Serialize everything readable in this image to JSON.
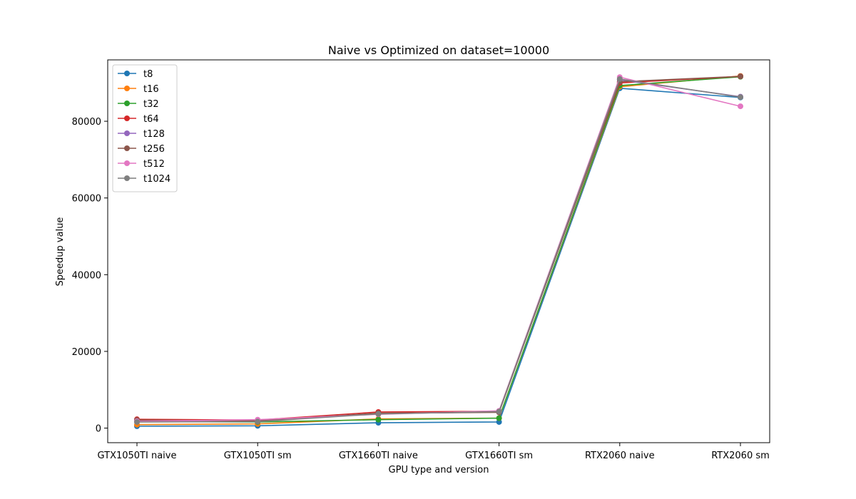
{
  "chart_data": {
    "type": "line",
    "title": "Naive vs Optimized on dataset=10000",
    "xlabel": "GPU type and version",
    "ylabel": "Speedup value",
    "categories": [
      "GTX1050TI naive",
      "GTX1050TI sm",
      "GTX1660TI naive",
      "GTX1660TI sm",
      "RTX2060 naive",
      "RTX2060 sm"
    ],
    "ylim": [
      -3800,
      96000
    ],
    "yticks": [
      0,
      20000,
      40000,
      60000,
      80000
    ],
    "ytick_labels": [
      "0",
      "20000",
      "40000",
      "60000",
      "80000"
    ],
    "grid": false,
    "legend_position": "top-left",
    "series": [
      {
        "name": "t8",
        "color": "#1f77b4",
        "values": [
          500,
          600,
          1400,
          1600,
          88600,
          86200
        ]
      },
      {
        "name": "t16",
        "color": "#ff7f0e",
        "values": [
          900,
          1100,
          2400,
          2600,
          89000,
          91800
        ]
      },
      {
        "name": "t32",
        "color": "#2ca02c",
        "values": [
          1700,
          1600,
          2200,
          2600,
          89300,
          91600
        ]
      },
      {
        "name": "t64",
        "color": "#d62728",
        "values": [
          2300,
          2100,
          4200,
          4400,
          90000,
          91700
        ]
      },
      {
        "name": "t128",
        "color": "#9467bd",
        "values": [
          1900,
          2000,
          3800,
          4200,
          90800,
          86400
        ]
      },
      {
        "name": "t256",
        "color": "#8c564b",
        "values": [
          2100,
          1900,
          3900,
          4100,
          90300,
          91700
        ]
      },
      {
        "name": "t512",
        "color": "#e377c2",
        "values": [
          1800,
          2200,
          3600,
          4500,
          91500,
          83900
        ]
      },
      {
        "name": "t1024",
        "color": "#7f7f7f",
        "values": [
          1600,
          1700,
          3700,
          4300,
          91000,
          86300
        ]
      }
    ]
  }
}
